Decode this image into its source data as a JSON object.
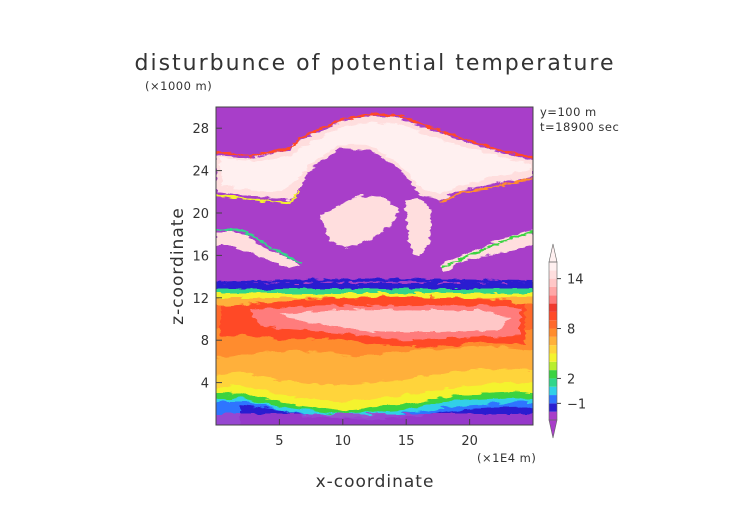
{
  "chart_data": {
    "type": "heatmap",
    "title": "disturbunce of potential temperature",
    "xlabel": "x-coordinate",
    "ylabel": "z-coordinate",
    "x_unit": "(×1E4 m)",
    "y_unit": "(×1000 m)",
    "annotations": [
      "y=100 m",
      "t=18900 sec"
    ],
    "xlim": [
      0,
      25
    ],
    "ylim": [
      0,
      30
    ],
    "x_ticks": [
      5,
      10,
      15,
      20
    ],
    "y_ticks": [
      4,
      8,
      12,
      16,
      20,
      24,
      28
    ],
    "colorbar": {
      "tick_labels": [
        14,
        8,
        2,
        -1
      ],
      "levels": [
        -3,
        -2,
        -1,
        0,
        1,
        2,
        3,
        4,
        5,
        6,
        7,
        8,
        9,
        10,
        11,
        12,
        13,
        14,
        15,
        16
      ],
      "colors": [
        "#a83ec9",
        "#2a1fd0",
        "#2f74ff",
        "#30d0e8",
        "#31d68a",
        "#3bd341",
        "#b8ee2e",
        "#f4f32d",
        "#ffd43a",
        "#ffb03a",
        "#ff8c2d",
        "#ff6a2b",
        "#ff4a27",
        "#f03a2e",
        "#ff7b7b",
        "#ffa7a7",
        "#ffc7c7",
        "#ffdede",
        "#fff0f0"
      ],
      "extend": "both"
    },
    "grid": false
  }
}
